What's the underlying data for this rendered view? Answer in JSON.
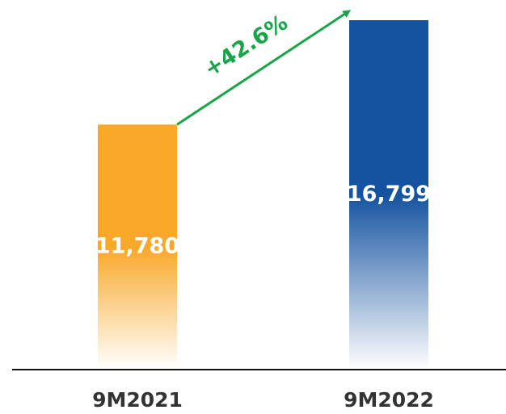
{
  "chart_data": {
    "type": "bar",
    "categories": [
      "9M2021",
      "9M2022"
    ],
    "values": [
      11780,
      16799
    ],
    "value_labels": [
      "11,780",
      "16,799"
    ],
    "colors": [
      "#f9a82a",
      "#1553a0"
    ],
    "annotation": "+42.6%",
    "annotation_color": "#1aa44a"
  }
}
